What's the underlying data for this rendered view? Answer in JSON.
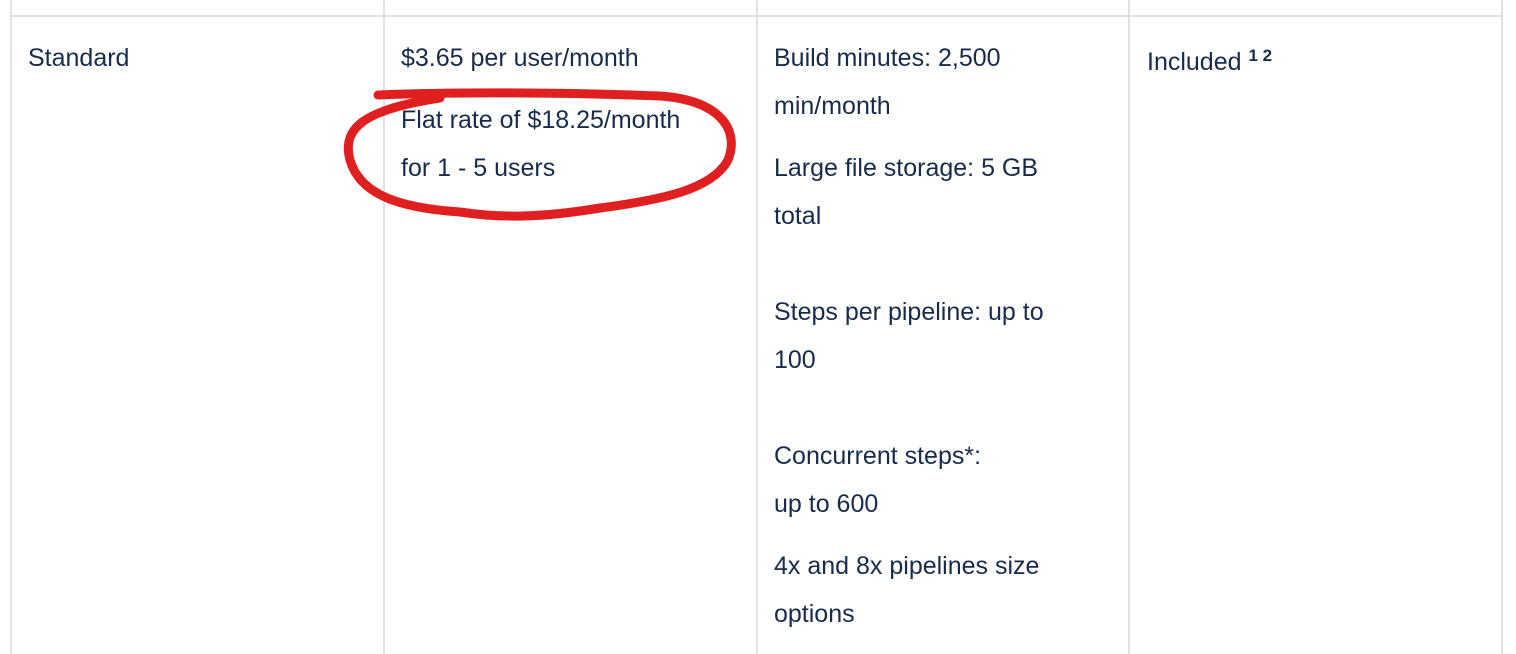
{
  "row": {
    "plan": "Standard",
    "price": {
      "per_user": "$3.65 per user/month",
      "flat_rate_line1": "Flat rate of $18.25/month",
      "flat_rate_line2": "for 1 - 5 users"
    },
    "features": {
      "build_minutes_1": "Build minutes: 2,500",
      "build_minutes_2": "min/month",
      "storage_1": "Large file storage: 5 GB",
      "storage_2": "total",
      "steps_1": "Steps per pipeline: up to",
      "steps_2": "100",
      "concurrent_1": "Concurrent steps*:",
      "concurrent_2": "up to 600",
      "sizes_1": "4x and 8x pipelines size",
      "sizes_2": "options"
    },
    "support": {
      "label": "Included",
      "footnotes": "1 2"
    }
  },
  "annotation": {
    "color": "#e02020",
    "shape": "freehand-circle"
  },
  "colors": {
    "text": "#172b4d",
    "border": "#dfe1e6"
  }
}
